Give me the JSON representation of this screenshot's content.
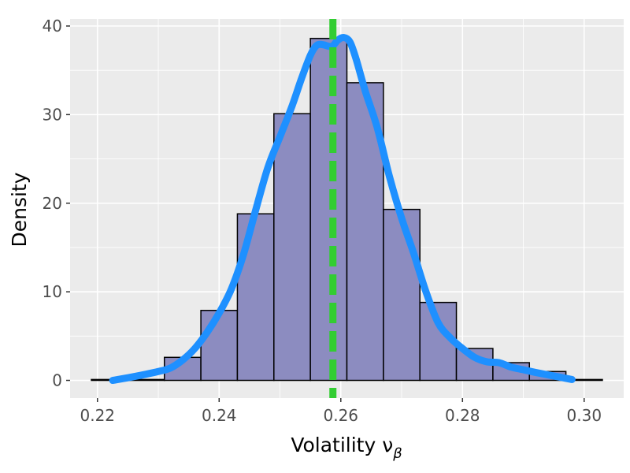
{
  "chart_data": {
    "type": "histogram",
    "xlabel": "Volatility ν",
    "xlabel_subscript": "β",
    "ylabel": "Density",
    "xlim": [
      0.2155,
      0.3065
    ],
    "ylim": [
      -2,
      40.8
    ],
    "x_ticks": [
      0.22,
      0.24,
      0.26,
      0.28,
      0.3
    ],
    "x_tick_labels": [
      "0.22",
      "0.24",
      "0.26",
      "0.28",
      "0.30"
    ],
    "y_ticks": [
      0,
      10,
      20,
      30,
      40
    ],
    "y_tick_labels": [
      "0",
      "10",
      "20",
      "30",
      "40"
    ],
    "grid": true,
    "background": "#ebebeb",
    "bars": {
      "fill": "#8c8cc0",
      "edge": "#000000",
      "bins": [
        {
          "x0": 0.219,
          "x1": 0.225,
          "y": 0.1
        },
        {
          "x0": 0.225,
          "x1": 0.231,
          "y": 0.1
        },
        {
          "x0": 0.231,
          "x1": 0.237,
          "y": 2.6
        },
        {
          "x0": 0.237,
          "x1": 0.243,
          "y": 7.9
        },
        {
          "x0": 0.243,
          "x1": 0.249,
          "y": 18.8
        },
        {
          "x0": 0.249,
          "x1": 0.255,
          "y": 30.1
        },
        {
          "x0": 0.255,
          "x1": 0.261,
          "y": 38.6
        },
        {
          "x0": 0.261,
          "x1": 0.267,
          "y": 33.6
        },
        {
          "x0": 0.267,
          "x1": 0.273,
          "y": 19.3
        },
        {
          "x0": 0.273,
          "x1": 0.279,
          "y": 8.8
        },
        {
          "x0": 0.279,
          "x1": 0.285,
          "y": 3.6
        },
        {
          "x0": 0.285,
          "x1": 0.291,
          "y": 2.0
        },
        {
          "x0": 0.291,
          "x1": 0.297,
          "y": 1.0
        },
        {
          "x0": 0.297,
          "x1": 0.303,
          "y": 0.1
        }
      ]
    },
    "density_curve": {
      "color": "#1e90ff",
      "points": [
        [
          0.2225,
          0.0
        ],
        [
          0.225,
          0.3
        ],
        [
          0.228,
          0.7
        ],
        [
          0.23,
          1.0
        ],
        [
          0.232,
          1.4
        ],
        [
          0.234,
          2.3
        ],
        [
          0.236,
          3.6
        ],
        [
          0.238,
          5.4
        ],
        [
          0.24,
          7.6
        ],
        [
          0.242,
          10.3
        ],
        [
          0.244,
          14.2
        ],
        [
          0.246,
          19.2
        ],
        [
          0.248,
          24.0
        ],
        [
          0.25,
          27.5
        ],
        [
          0.252,
          31.0
        ],
        [
          0.2535,
          34.0
        ],
        [
          0.255,
          36.7
        ],
        [
          0.256,
          37.8
        ],
        [
          0.257,
          37.9
        ],
        [
          0.2585,
          37.7
        ],
        [
          0.2595,
          38.4
        ],
        [
          0.2605,
          38.7
        ],
        [
          0.2615,
          38.2
        ],
        [
          0.2625,
          36.3
        ],
        [
          0.264,
          32.7
        ],
        [
          0.266,
          28.5
        ],
        [
          0.268,
          23.0
        ],
        [
          0.27,
          18.3
        ],
        [
          0.272,
          14.3
        ],
        [
          0.274,
          10.0
        ],
        [
          0.276,
          6.5
        ],
        [
          0.278,
          4.8
        ],
        [
          0.28,
          3.6
        ],
        [
          0.282,
          2.6
        ],
        [
          0.284,
          2.1
        ],
        [
          0.286,
          2.0
        ],
        [
          0.288,
          1.5
        ],
        [
          0.29,
          1.2
        ],
        [
          0.292,
          0.9
        ],
        [
          0.295,
          0.5
        ],
        [
          0.298,
          0.1
        ]
      ]
    },
    "reference_line": {
      "x": 0.2587,
      "color": "#32cd32",
      "style": "dashed"
    }
  }
}
